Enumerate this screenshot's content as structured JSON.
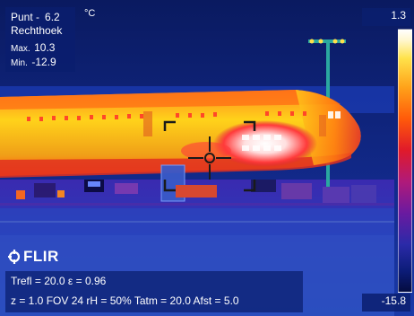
{
  "image": {
    "subject": "Thermal camera image of an airliner parked on an airport apron at night",
    "palette": [
      "#0a1e6e",
      "#3a2ab0",
      "#9a1a8a",
      "#e0202a",
      "#ff6a10",
      "#ffd21a",
      "#ffffff"
    ]
  },
  "measurement": {
    "spot_label": "Punt -",
    "spot_value": "6.2",
    "unit": "°C",
    "shape_label": "Rechthoek",
    "max_label": "Max.",
    "max_value": "10.3",
    "min_label": "Min.",
    "min_value": "-12.9"
  },
  "scale": {
    "max": "1.3",
    "min": "-15.8"
  },
  "brand": {
    "name": "FLIR"
  },
  "parameters": {
    "line1": "Trefl = 20.0  ε = 0.96",
    "line2": "z = 1.0  FOV 24  rH = 50%  Tatm = 20.0  Afst = 5.0"
  }
}
